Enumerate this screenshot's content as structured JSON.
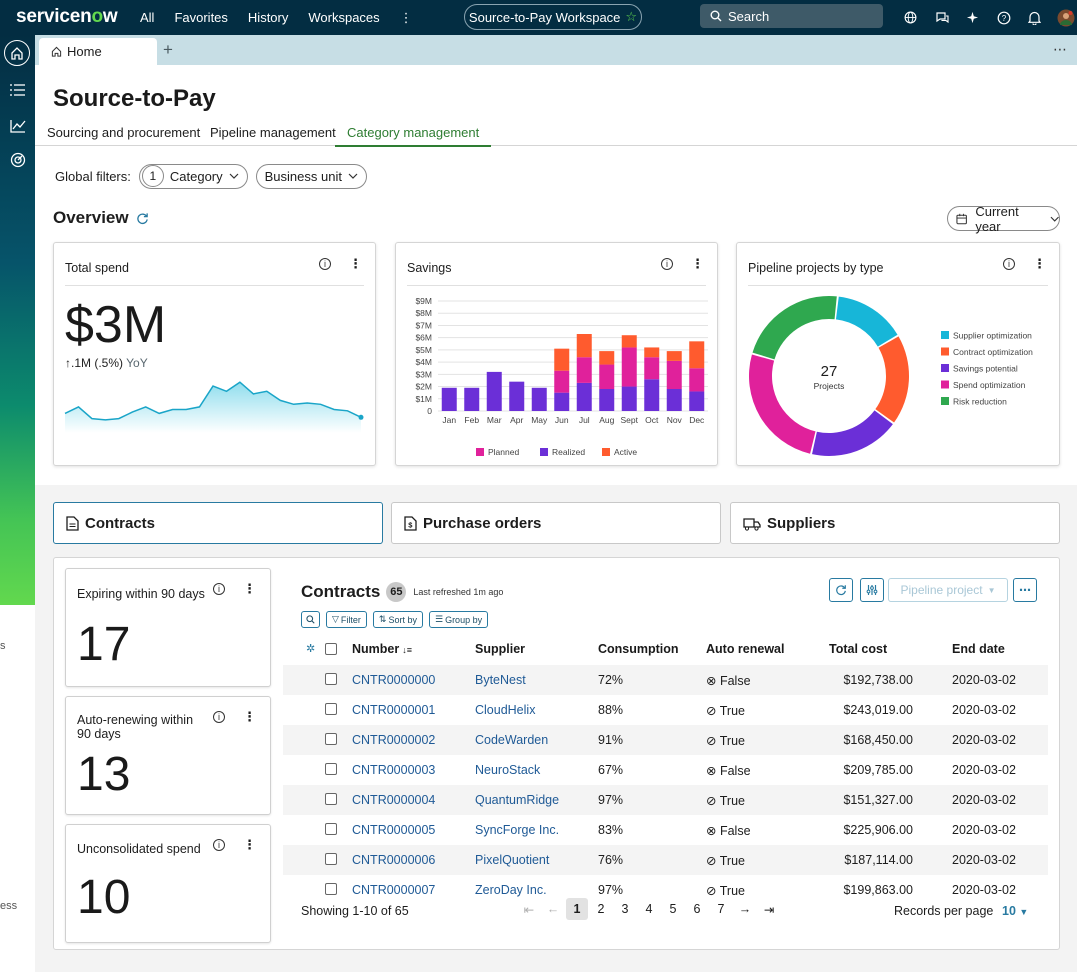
{
  "topbar": {
    "logo_a": "servicen",
    "logo_o": "o",
    "logo_b": "w",
    "nav": [
      "All",
      "Favorites",
      "History",
      "Workspaces"
    ],
    "more": "⋮",
    "workspace": "Source-to-Pay Workspace",
    "search_placeholder": "Search"
  },
  "tabs": {
    "home": "Home",
    "add": "+",
    "more": "⋯"
  },
  "page": {
    "title": "Source-to-Pay",
    "subtabs": [
      "Sourcing and procurement",
      "Pipeline management",
      "Category management"
    ],
    "active_subtab": "Category management"
  },
  "filters": {
    "label": "Global filters:",
    "category_count": "1",
    "category": "Category",
    "business_unit": "Business unit"
  },
  "overview": {
    "title": "Overview",
    "period": "Current year"
  },
  "total_spend": {
    "title": "Total spend",
    "value": "$3M",
    "delta": ".1M (.5%)",
    "delta_suffix": "YoY",
    "sparkline": [
      12,
      17,
      8,
      7,
      8,
      13,
      17,
      12,
      15,
      15,
      17,
      33,
      29,
      36,
      27,
      29,
      22,
      19,
      20,
      19,
      15,
      14,
      9
    ]
  },
  "savings": {
    "title": "Savings"
  },
  "pipeline": {
    "title": "Pipeline projects by type",
    "center_value": "27",
    "center_label": "Projects",
    "legend": [
      "Supplier optimization",
      "Contract optimization",
      "Savings potential",
      "Spend optimization",
      "Risk reduction"
    ]
  },
  "chart_data": [
    {
      "type": "bar",
      "title": "Savings",
      "stacked": true,
      "categories": [
        "Jan",
        "Feb",
        "Mar",
        "Apr",
        "May",
        "Jun",
        "Jul",
        "Aug",
        "Sept",
        "Oct",
        "Nov",
        "Dec"
      ],
      "y_ticks": [
        "0",
        "$1M",
        "$2M",
        "$3M",
        "$4M",
        "$5M",
        "$6M",
        "$7M",
        "$8M",
        "$9M"
      ],
      "ylim": [
        0,
        9
      ],
      "series": [
        {
          "name": "Realized",
          "color": "#6b2fd7",
          "values": [
            1.9,
            1.9,
            3.2,
            2.4,
            1.9,
            1.5,
            2.3,
            1.8,
            2.0,
            2.6,
            1.8,
            1.6
          ]
        },
        {
          "name": "Planned",
          "color": "#e0219b",
          "values": [
            0,
            0,
            0,
            0,
            0,
            1.8,
            2.1,
            2.0,
            3.2,
            1.8,
            2.3,
            1.9
          ]
        },
        {
          "name": "Active",
          "color": "#ff5b2e",
          "values": [
            0,
            0,
            0,
            0,
            0,
            1.8,
            1.9,
            1.1,
            1.0,
            0.8,
            0.8,
            2.2
          ]
        }
      ],
      "legend": [
        "Planned",
        "Realized",
        "Active"
      ]
    },
    {
      "type": "pie",
      "title": "Pipeline projects by type",
      "donut": true,
      "categories": [
        "Supplier optimization",
        "Contract optimization",
        "Savings potential",
        "Spend optimization",
        "Risk reduction"
      ],
      "colors": [
        "#17b6d8",
        "#ff5b2e",
        "#6b2fd7",
        "#e0219b",
        "#2fa84f"
      ],
      "values": [
        4,
        5,
        5,
        7,
        6
      ],
      "total": 27
    }
  ],
  "bottom_tabs": [
    "Contracts",
    "Purchase orders",
    "Suppliers"
  ],
  "metrics": [
    {
      "title": "Expiring within 90 days",
      "value": "17"
    },
    {
      "title": "Auto-renewing within 90 days",
      "value": "13"
    },
    {
      "title": "Unconsolidated spend",
      "value": "10"
    }
  ],
  "contracts": {
    "title": "Contracts",
    "count": "65",
    "refreshed": "Last refreshed 1m ago",
    "pipeline_btn": "Pipeline project",
    "filter": "Filter",
    "sort": "Sort by",
    "group": "Group by",
    "columns": [
      "Number",
      "Supplier",
      "Consumption",
      "Auto renewal",
      "Total cost",
      "End date"
    ],
    "rows": [
      {
        "number": "CNTR0000000",
        "supplier": "ByteNest",
        "consumption": "72%",
        "renewal": "False",
        "cost": "$192,738.00",
        "end": "2020-03-02"
      },
      {
        "number": "CNTR0000001",
        "supplier": "CloudHelix",
        "consumption": "88%",
        "renewal": "True",
        "cost": "$243,019.00",
        "end": "2020-03-02"
      },
      {
        "number": "CNTR0000002",
        "supplier": "CodeWarden",
        "consumption": "91%",
        "renewal": "True",
        "cost": "$168,450.00",
        "end": "2020-03-02"
      },
      {
        "number": "CNTR0000003",
        "supplier": "NeuroStack",
        "consumption": "67%",
        "renewal": "False",
        "cost": "$209,785.00",
        "end": "2020-03-02"
      },
      {
        "number": "CNTR0000004",
        "supplier": "QuantumRidge",
        "consumption": "97%",
        "renewal": "True",
        "cost": "$151,327.00",
        "end": "2020-03-02"
      },
      {
        "number": "CNTR0000005",
        "supplier": "SyncForge Inc.",
        "consumption": "83%",
        "renewal": "False",
        "cost": "$225,906.00",
        "end": "2020-03-02"
      },
      {
        "number": "CNTR0000006",
        "supplier": "PixelQuotient",
        "consumption": "76%",
        "renewal": "True",
        "cost": "$187,114.00",
        "end": "2020-03-02"
      },
      {
        "number": "CNTR0000007",
        "supplier": "ZeroDay Inc.",
        "consumption": "97%",
        "renewal": "True",
        "cost": "$199,863.00",
        "end": "2020-03-02"
      }
    ],
    "showing": "Showing 1-10 of 65",
    "pages": [
      "1",
      "2",
      "3",
      "4",
      "5",
      "6",
      "7"
    ],
    "current_page": "1",
    "records_label": "Records per page",
    "records_value": "10"
  },
  "bg_fragments": [
    "s",
    "ess"
  ]
}
